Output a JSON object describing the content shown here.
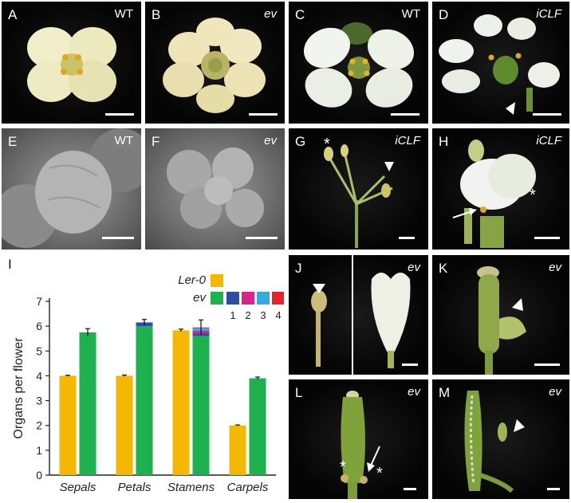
{
  "panels": {
    "A": {
      "letter": "A",
      "genotype": "WT"
    },
    "B": {
      "letter": "B",
      "genotype": "ev"
    },
    "C": {
      "letter": "C",
      "genotype": "WT"
    },
    "D": {
      "letter": "D",
      "genotype": "iCLF"
    },
    "E": {
      "letter": "E",
      "genotype": "WT"
    },
    "F": {
      "letter": "F",
      "genotype": "ev"
    },
    "G": {
      "letter": "G",
      "genotype": "iCLF"
    },
    "H": {
      "letter": "H",
      "genotype": "iCLF"
    },
    "I": {
      "letter": "I"
    },
    "J": {
      "letter": "J",
      "genotype": "ev"
    },
    "K": {
      "letter": "K",
      "genotype": "ev"
    },
    "L": {
      "letter": "L",
      "genotype": "ev"
    },
    "M": {
      "letter": "M",
      "genotype": "ev"
    }
  },
  "chart_data": {
    "type": "bar",
    "ylabel": "Organs per flower",
    "ylim": [
      0,
      7
    ],
    "yticks": [
      "0",
      "1",
      "2",
      "3",
      "4",
      "5",
      "6",
      "7"
    ],
    "categories": [
      "Sepals",
      "Petals",
      "Stamens",
      "Carpels"
    ],
    "series": [
      {
        "name": "Ler-0",
        "color": "#f5b800",
        "values": [
          4.0,
          4.0,
          5.83,
          2.0
        ],
        "errors": [
          0.02,
          0.03,
          0.05,
          0.02
        ]
      },
      {
        "name": "ev",
        "color": "#1db150",
        "values": [
          5.75,
          6.0,
          5.6,
          3.9
        ],
        "errors": [
          0.15,
          0.12,
          0.3,
          0.05
        ]
      }
    ],
    "ev_stack_extra": [
      {
        "category": "Petals",
        "segments": [
          {
            "class": "1",
            "value": 0.15
          }
        ]
      },
      {
        "category": "Stamens",
        "segments": [
          {
            "class": "1",
            "value": 0.1
          },
          {
            "class": "2",
            "value": 0.12
          },
          {
            "class": "3",
            "value": 0.1
          },
          {
            "class": "4",
            "value": 0.03
          }
        ]
      }
    ],
    "legend": {
      "entries": [
        "Ler-0",
        "ev"
      ],
      "classes": [
        {
          "label": "1",
          "color": "#2e4ea3"
        },
        {
          "label": "2",
          "color": "#d9238c"
        },
        {
          "label": "3",
          "color": "#36a9e1"
        },
        {
          "label": "4",
          "color": "#e8232b"
        }
      ],
      "position": "top-right"
    },
    "grid": false
  }
}
